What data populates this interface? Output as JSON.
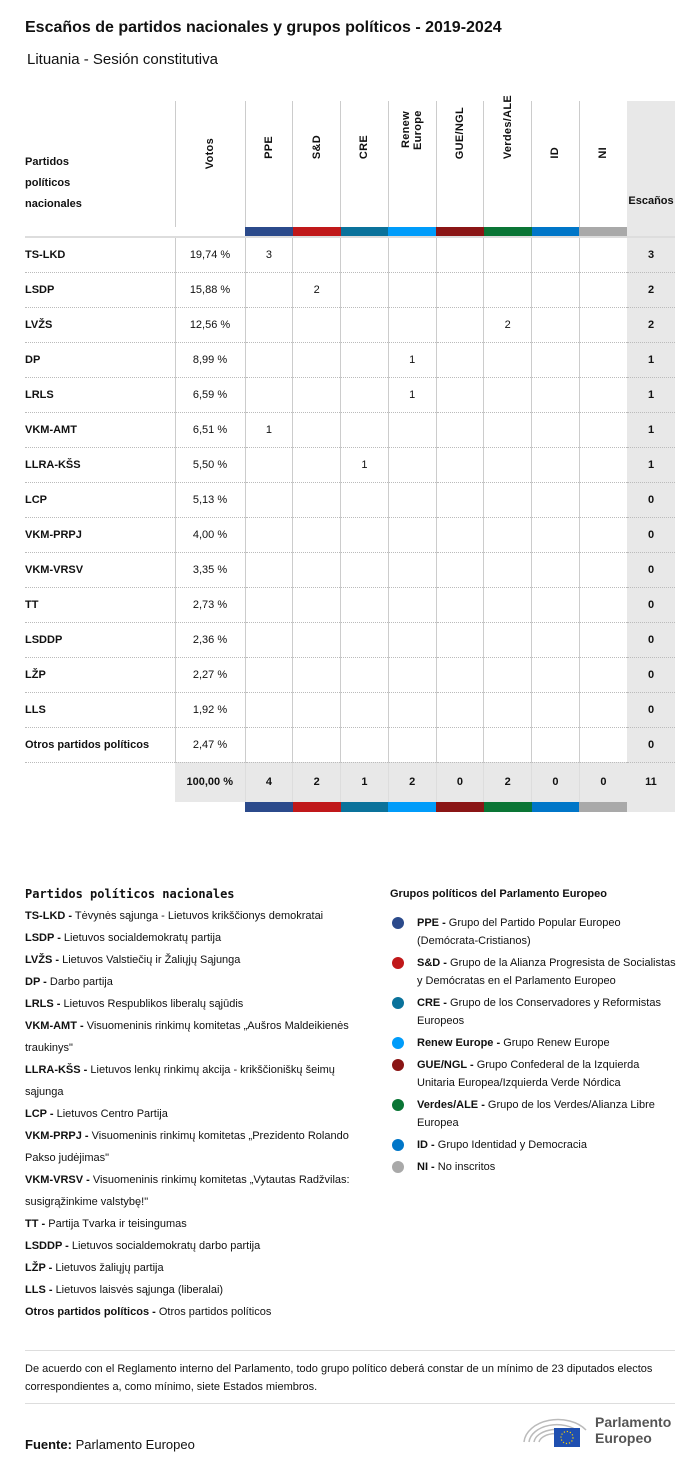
{
  "title": "Escaños de partidos nacionales y grupos políticos - 2019-2024",
  "subtitle": "Lituania - Sesión constitutiva",
  "table": {
    "party_header": "Partidos políticos nacionales",
    "votes_header": "Votos",
    "seats_header": "Escaños",
    "groups": [
      {
        "label": "PPE",
        "color": "#2b4a8b"
      },
      {
        "label": "S&D",
        "color": "#c0181a"
      },
      {
        "label": "CRE",
        "color": "#0a729b"
      },
      {
        "label": "Renew Europe",
        "color": "#009cfa"
      },
      {
        "label": "GUE/NGL",
        "color": "#8a1515"
      },
      {
        "label": "Verdes/ALE",
        "color": "#0a7535"
      },
      {
        "label": "ID",
        "color": "#0076c8"
      },
      {
        "label": "NI",
        "color": "#a9a9a9"
      }
    ],
    "rows": [
      {
        "party": "TS-LKD",
        "votes": "19,74 %",
        "groups": [
          "3",
          "",
          "",
          "",
          "",
          "",
          "",
          ""
        ],
        "seats": "3"
      },
      {
        "party": "LSDP",
        "votes": "15,88 %",
        "groups": [
          "",
          "2",
          "",
          "",
          "",
          "",
          "",
          ""
        ],
        "seats": "2"
      },
      {
        "party": "LVŽS",
        "votes": "12,56 %",
        "groups": [
          "",
          "",
          "",
          "",
          "",
          "2",
          "",
          ""
        ],
        "seats": "2"
      },
      {
        "party": "DP",
        "votes": "8,99 %",
        "groups": [
          "",
          "",
          "",
          "1",
          "",
          "",
          "",
          ""
        ],
        "seats": "1"
      },
      {
        "party": "LRLS",
        "votes": "6,59 %",
        "groups": [
          "",
          "",
          "",
          "1",
          "",
          "",
          "",
          ""
        ],
        "seats": "1"
      },
      {
        "party": "VKM-AMT",
        "votes": "6,51 %",
        "groups": [
          "1",
          "",
          "",
          "",
          "",
          "",
          "",
          ""
        ],
        "seats": "1"
      },
      {
        "party": "LLRA-KŠS",
        "votes": "5,50 %",
        "groups": [
          "",
          "",
          "1",
          "",
          "",
          "",
          "",
          ""
        ],
        "seats": "1"
      },
      {
        "party": "LCP",
        "votes": "5,13 %",
        "groups": [
          "",
          "",
          "",
          "",
          "",
          "",
          "",
          ""
        ],
        "seats": "0"
      },
      {
        "party": "VKM-PRPJ",
        "votes": "4,00 %",
        "groups": [
          "",
          "",
          "",
          "",
          "",
          "",
          "",
          ""
        ],
        "seats": "0"
      },
      {
        "party": "VKM-VRSV",
        "votes": "3,35 %",
        "groups": [
          "",
          "",
          "",
          "",
          "",
          "",
          "",
          ""
        ],
        "seats": "0"
      },
      {
        "party": "TT",
        "votes": "2,73 %",
        "groups": [
          "",
          "",
          "",
          "",
          "",
          "",
          "",
          ""
        ],
        "seats": "0"
      },
      {
        "party": "LSDDP",
        "votes": "2,36 %",
        "groups": [
          "",
          "",
          "",
          "",
          "",
          "",
          "",
          ""
        ],
        "seats": "0"
      },
      {
        "party": "LŽP",
        "votes": "2,27 %",
        "groups": [
          "",
          "",
          "",
          "",
          "",
          "",
          "",
          ""
        ],
        "seats": "0"
      },
      {
        "party": "LLS",
        "votes": "1,92 %",
        "groups": [
          "",
          "",
          "",
          "",
          "",
          "",
          "",
          ""
        ],
        "seats": "0"
      },
      {
        "party": "Otros partidos políticos",
        "votes": "2,47 %",
        "groups": [
          "",
          "",
          "",
          "",
          "",
          "",
          "",
          ""
        ],
        "seats": "0"
      }
    ],
    "total": {
      "votes": "100,00 %",
      "groups": [
        "4",
        "2",
        "1",
        "2",
        "0",
        "2",
        "0",
        "0"
      ],
      "seats": "11"
    }
  },
  "legend_national": {
    "title": "Partidos políticos nacionales",
    "items": [
      {
        "abbr": "TS-LKD -",
        "name": "Tėvynės sąjunga - Lietuvos krikščionys demokratai"
      },
      {
        "abbr": "LSDP -",
        "name": "Lietuvos socialdemokratų partija"
      },
      {
        "abbr": "LVŽS -",
        "name": "Lietuvos Valstiečių ir Žaliųjų Sąjunga"
      },
      {
        "abbr": "DP -",
        "name": "Darbo partija"
      },
      {
        "abbr": "LRLS -",
        "name": "Lietuvos Respublikos liberalų sąjūdis"
      },
      {
        "abbr": "VKM-AMT -",
        "name": "Visuomeninis rinkimų komitetas „Aušros Maldeikienės traukinys\""
      },
      {
        "abbr": "LLRA-KŠS -",
        "name": "Lietuvos lenkų rinkimų akcija - krikščioniškų šeimų sąjunga"
      },
      {
        "abbr": "LCP -",
        "name": "Lietuvos Centro Partija"
      },
      {
        "abbr": "VKM-PRPJ -",
        "name": "Visuomeninis rinkimų komitetas „Prezidento Rolando Pakso judėjimas\""
      },
      {
        "abbr": "VKM-VRSV -",
        "name": "Visuomeninis rinkimų komitetas „Vytautas Radžvilas: susigrąžinkime valstybę!\""
      },
      {
        "abbr": "TT -",
        "name": "Partija Tvarka ir teisingumas"
      },
      {
        "abbr": "LSDDP -",
        "name": "Lietuvos socialdemokratų darbo partija"
      },
      {
        "abbr": "LŽP -",
        "name": "Lietuvos žaliųjų partija"
      },
      {
        "abbr": "LLS -",
        "name": "Lietuvos laisvės sąjunga (liberalai)"
      },
      {
        "abbr": "Otros partidos políticos -",
        "name": "Otros partidos políticos"
      }
    ]
  },
  "legend_groups": {
    "title": "Grupos políticos del Parlamento Europeo",
    "items": [
      {
        "abbr": "PPE -",
        "name": "Grupo del Partido Popular Europeo (Demócrata-Cristianos)",
        "color": "#2b4a8b"
      },
      {
        "abbr": "S&D -",
        "name": "Grupo de la Alianza Progresista de Socialistas y Demócratas en el Parlamento Europeo",
        "color": "#c0181a"
      },
      {
        "abbr": "CRE -",
        "name": "Grupo de los Conservadores y Reformistas Europeos",
        "color": "#0a729b"
      },
      {
        "abbr": "Renew Europe -",
        "name": "Grupo Renew Europe",
        "color": "#009cfa"
      },
      {
        "abbr": "GUE/NGL -",
        "name": "Grupo Confederal de la Izquierda Unitaria Europea/Izquierda Verde Nórdica",
        "color": "#8a1515"
      },
      {
        "abbr": "Verdes/ALE -",
        "name": "Grupo de los Verdes/Alianza Libre Europea",
        "color": "#0a7535"
      },
      {
        "abbr": "ID -",
        "name": "Grupo Identidad y Democracia",
        "color": "#0076c8"
      },
      {
        "abbr": "NI -",
        "name": "No inscritos",
        "color": "#a9a9a9"
      }
    ]
  },
  "note": "De acuerdo con el Reglamento interno del Parlamento, todo grupo político deberá constar de un mínimo de 23 diputados electos correspondientes a, como mínimo, siete Estados miembros.",
  "source": {
    "label": "Fuente:",
    "value": "Parlamento Europeo"
  },
  "logo": {
    "line1": "Parlamento",
    "line2": "Europeo"
  }
}
